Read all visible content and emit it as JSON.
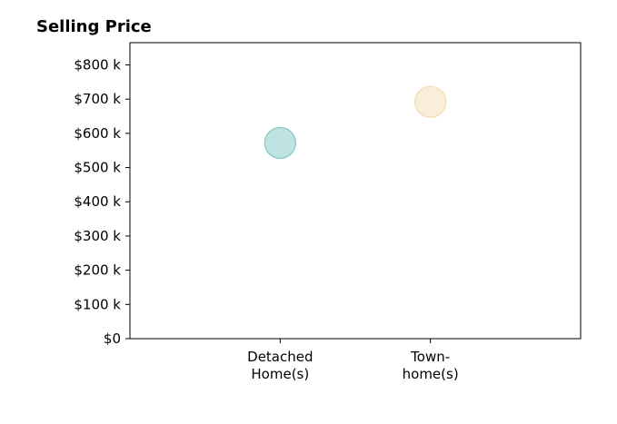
{
  "chart_data": {
    "type": "scatter",
    "title": "Selling Price",
    "xlabel": "",
    "ylabel": "",
    "ylim": [
      0,
      865000
    ],
    "y_ticks": [
      {
        "value": 0,
        "label": "$0"
      },
      {
        "value": 100000,
        "label": "$100 k"
      },
      {
        "value": 200000,
        "label": "$200 k"
      },
      {
        "value": 300000,
        "label": "$300 k"
      },
      {
        "value": 400000,
        "label": "$400 k"
      },
      {
        "value": 500000,
        "label": "$500 k"
      },
      {
        "value": 600000,
        "label": "$600 k"
      },
      {
        "value": 700000,
        "label": "$700 k"
      },
      {
        "value": 800000,
        "label": "$800 k"
      }
    ],
    "categories": [
      {
        "lines": [
          "Detached",
          "Home(s)"
        ]
      },
      {
        "lines": [
          "Town-",
          "home(s)"
        ]
      }
    ],
    "points": [
      {
        "category_index": 0,
        "value": 572000,
        "color": "#7fc7c2"
      },
      {
        "category_index": 1,
        "value": 692000,
        "color": "#f4ddb0"
      }
    ],
    "grid": false,
    "legend": "none"
  }
}
